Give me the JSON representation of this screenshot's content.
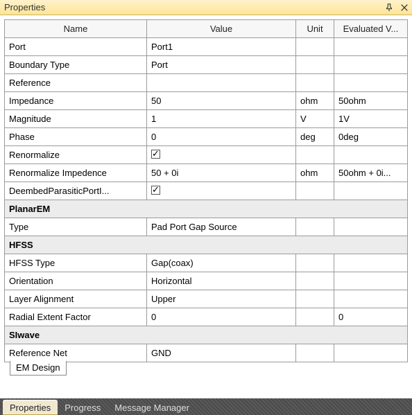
{
  "panel": {
    "title": "Properties"
  },
  "columns": {
    "name": "Name",
    "value": "Value",
    "unit": "Unit",
    "evaluated": "Evaluated V..."
  },
  "rows": [
    {
      "type": "data",
      "name": "Port",
      "value": "Port1",
      "unit": "",
      "eval": ""
    },
    {
      "type": "data",
      "name": "Boundary Type",
      "value": "Port",
      "unit": "",
      "eval": ""
    },
    {
      "type": "data",
      "name": "Reference",
      "value": "",
      "unit": "",
      "eval": ""
    },
    {
      "type": "data",
      "name": "Impedance",
      "value": "50",
      "unit": "ohm",
      "eval": "50ohm"
    },
    {
      "type": "data",
      "name": "Magnitude",
      "value": "1",
      "unit": "V",
      "eval": "1V"
    },
    {
      "type": "data",
      "name": "Phase",
      "value": "0",
      "unit": "deg",
      "eval": "0deg"
    },
    {
      "type": "check",
      "name": "Renormalize",
      "checked": true,
      "unit": "",
      "eval": ""
    },
    {
      "type": "data",
      "name": "Renormalize Impedence",
      "value": "50 + 0i",
      "unit": "ohm",
      "eval": "50ohm + 0i..."
    },
    {
      "type": "check",
      "name": "DeembedParasiticPortI...",
      "checked": true,
      "unit": "",
      "eval": ""
    },
    {
      "type": "section",
      "name": "PlanarEM"
    },
    {
      "type": "data",
      "name": "Type",
      "value": "Pad Port Gap Source",
      "unit": "",
      "eval": ""
    },
    {
      "type": "section",
      "name": "HFSS"
    },
    {
      "type": "data",
      "name": "HFSS Type",
      "value": "Gap(coax)",
      "unit": "",
      "eval": ""
    },
    {
      "type": "data",
      "name": "Orientation",
      "value": "Horizontal",
      "unit": "",
      "eval": ""
    },
    {
      "type": "data",
      "name": "Layer Alignment",
      "value": "Upper",
      "unit": "",
      "eval": ""
    },
    {
      "type": "data",
      "name": "Radial Extent Factor",
      "value": "0",
      "unit": "",
      "eval": "0"
    },
    {
      "type": "section",
      "name": "SIwave"
    },
    {
      "type": "data",
      "name": "Reference Net",
      "value": "GND",
      "unit": "",
      "eval": ""
    }
  ],
  "inner_tab": "EM Design",
  "bottom_tabs": {
    "active": "Properties",
    "others": [
      "Progress",
      "Message Manager"
    ]
  }
}
